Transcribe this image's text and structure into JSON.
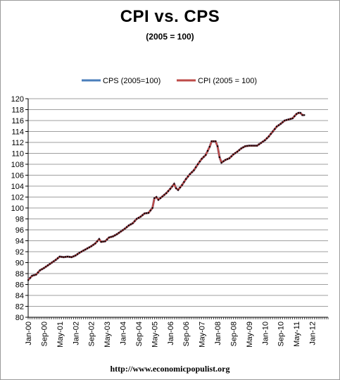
{
  "chart_data": {
    "type": "line",
    "title": "CPI vs. CPS",
    "subtitle": "(2005 = 100)",
    "xlabel": "",
    "ylabel": "",
    "ylim": [
      80,
      120
    ],
    "ytick_step": 2,
    "grid": true,
    "legend_position": "top",
    "x_tick_labels": [
      "Jan-00",
      "Sep-00",
      "May-01",
      "Jan-02",
      "Sep-02",
      "May-03",
      "Jan-04",
      "Sep-04",
      "May-05",
      "Jan-06",
      "Sep-06",
      "May-07",
      "Jan-08",
      "Sep-08",
      "May-09",
      "Jan-10",
      "Sep-10",
      "May-11",
      "Jan-12"
    ],
    "x_tick_every_months": 8,
    "x_start": "Jan-00",
    "keypoints": [
      [
        0,
        86.8
      ],
      [
        2,
        87.6
      ],
      [
        4,
        87.8
      ],
      [
        6,
        88.6
      ],
      [
        8,
        89.0
      ],
      [
        10,
        89.5
      ],
      [
        12,
        90.0
      ],
      [
        14,
        90.5
      ],
      [
        16,
        91.1
      ],
      [
        18,
        91.0
      ],
      [
        20,
        91.1
      ],
      [
        22,
        91.0
      ],
      [
        24,
        91.3
      ],
      [
        26,
        91.8
      ],
      [
        28,
        92.2
      ],
      [
        30,
        92.6
      ],
      [
        32,
        93.0
      ],
      [
        34,
        93.5
      ],
      [
        36,
        94.3
      ],
      [
        37,
        93.8
      ],
      [
        39,
        93.9
      ],
      [
        41,
        94.6
      ],
      [
        43,
        94.8
      ],
      [
        45,
        95.2
      ],
      [
        47,
        95.7
      ],
      [
        49,
        96.2
      ],
      [
        51,
        96.8
      ],
      [
        53,
        97.2
      ],
      [
        55,
        98.0
      ],
      [
        57,
        98.4
      ],
      [
        59,
        99.0
      ],
      [
        61,
        99.1
      ],
      [
        63,
        100.0
      ],
      [
        64,
        101.8
      ],
      [
        65,
        102.0
      ],
      [
        66,
        101.5
      ],
      [
        68,
        102.1
      ],
      [
        70,
        102.7
      ],
      [
        72,
        103.5
      ],
      [
        74,
        104.4
      ],
      [
        75,
        103.6
      ],
      [
        76,
        103.3
      ],
      [
        78,
        104.2
      ],
      [
        80,
        105.3
      ],
      [
        82,
        106.2
      ],
      [
        84,
        106.9
      ],
      [
        86,
        108.0
      ],
      [
        88,
        109.0
      ],
      [
        90,
        109.7
      ],
      [
        92,
        111.2
      ],
      [
        93,
        112.2
      ],
      [
        95,
        112.2
      ],
      [
        96,
        111.3
      ],
      [
        97,
        109.3
      ],
      [
        98,
        108.3
      ],
      [
        100,
        108.8
      ],
      [
        102,
        109.1
      ],
      [
        104,
        109.8
      ],
      [
        106,
        110.3
      ],
      [
        108,
        110.9
      ],
      [
        110,
        111.3
      ],
      [
        112,
        111.4
      ],
      [
        114,
        111.4
      ],
      [
        116,
        111.4
      ],
      [
        118,
        111.9
      ],
      [
        120,
        112.4
      ],
      [
        122,
        113.1
      ],
      [
        124,
        114.0
      ],
      [
        126,
        114.9
      ],
      [
        128,
        115.4
      ],
      [
        130,
        116.0
      ],
      [
        132,
        116.2
      ],
      [
        134,
        116.4
      ],
      [
        136,
        117.2
      ],
      [
        137,
        117.4
      ],
      [
        138,
        117.4
      ],
      [
        139,
        117.0
      ],
      [
        140,
        117.0
      ]
    ],
    "series": [
      {
        "name": "CPS (2005=100)",
        "color": "#4a7ebb"
      },
      {
        "name": "CPI (2005 = 100)",
        "color": "#be4b48"
      }
    ],
    "marker_color": "#000000",
    "grid_color": "#7f7f7f"
  },
  "footer": "http://www.economicpopulist.org"
}
